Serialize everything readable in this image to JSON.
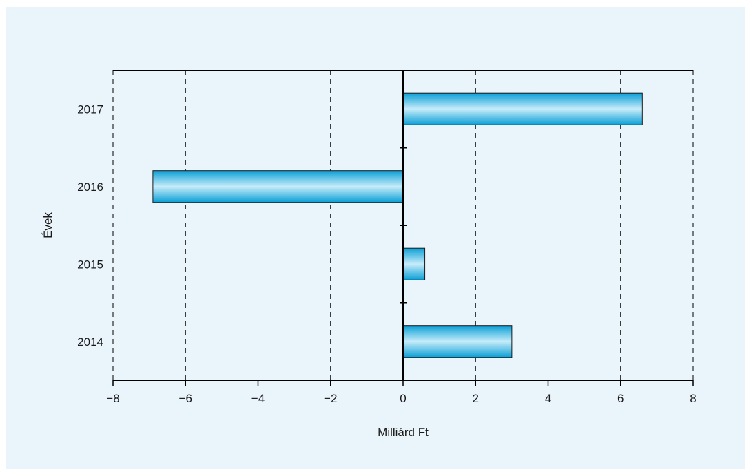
{
  "chart_data": {
    "type": "bar",
    "orientation": "horizontal",
    "categories": [
      "2014",
      "2015",
      "2016",
      "2017"
    ],
    "values": [
      3.0,
      0.6,
      -6.9,
      6.6
    ],
    "xlabel": "Milliárd Ft",
    "ylabel": "Évek",
    "xlim": [
      -8,
      8
    ],
    "xticks": [
      "−8",
      "−6",
      "−4",
      "−2",
      "0",
      "2",
      "4",
      "6",
      "8"
    ],
    "xtick_values": [
      -8,
      -6,
      -4,
      -2,
      0,
      2,
      4,
      6,
      8
    ],
    "grid": "vertical dashed",
    "legend": "none",
    "colors": {
      "bar_fill": "#1eb4e6",
      "bar_highlight": "#bfeafa",
      "background": "#eaf4fb",
      "axis": "#000000"
    }
  }
}
